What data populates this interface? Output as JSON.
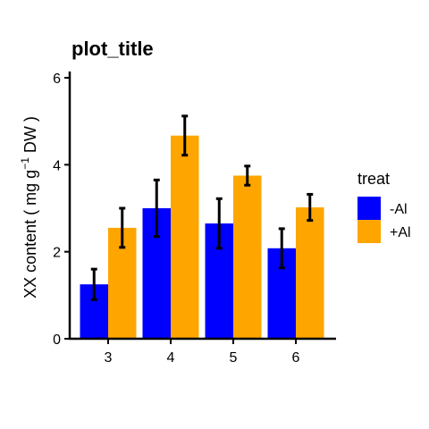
{
  "chart_data": {
    "type": "bar",
    "title": "plot_title",
    "xlabel": "",
    "ylabel": {
      "prefix": "XX content ( mg g",
      "superscript": "−1",
      "suffix": " DW )"
    },
    "categories": [
      "3",
      "4",
      "5",
      "6"
    ],
    "ylim": [
      0,
      6
    ],
    "yticks": [
      "0",
      "2",
      "4",
      "6"
    ],
    "legend": {
      "title": "treat",
      "placement": "right"
    },
    "series": [
      {
        "name": "-Al",
        "color": "#0000FF",
        "values": [
          1.25,
          3.0,
          2.65,
          2.08
        ],
        "error": [
          0.35,
          0.65,
          0.57,
          0.45
        ]
      },
      {
        "name": "+Al",
        "color": "#FFA500",
        "values": [
          2.55,
          4.67,
          3.75,
          3.02
        ],
        "error": [
          0.45,
          0.45,
          0.22,
          0.3
        ]
      }
    ]
  }
}
